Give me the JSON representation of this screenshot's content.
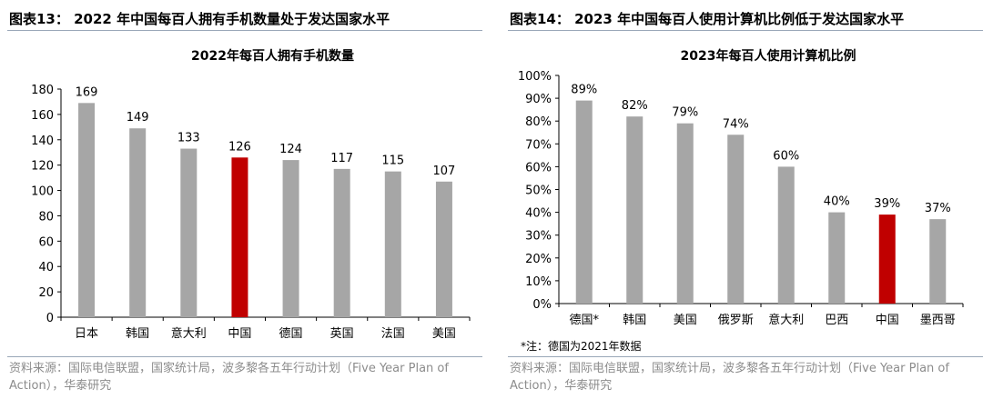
{
  "panels": [
    {
      "header": "图表13：  2022 年中国每百人拥有手机数量处于发达国家水平",
      "source": "资料来源：国际电信联盟，国家统计局，波多黎各五年行动计划（Five Year Plan of Action），华泰研究",
      "note": ""
    },
    {
      "header": "图表14：  2023 年中国每百人使用计算机比例低于发达国家水平",
      "source": "资料来源：国际电信联盟，国家统计局，波多黎各五年行动计划（Five Year Plan of Action），华泰研究",
      "note": "*注：德国为2021年数据"
    }
  ],
  "colors": {
    "bar": "#a6a6a6",
    "highlight": "#c00000",
    "axis": "#000000"
  },
  "chart_data": [
    {
      "type": "bar",
      "title": "2022年每百人拥有手机数量",
      "categories": [
        "日本",
        "韩国",
        "意大利",
        "中国",
        "德国",
        "英国",
        "法国",
        "美国"
      ],
      "values": [
        169,
        149,
        133,
        126,
        124,
        117,
        115,
        107
      ],
      "data_labels": [
        "169",
        "149",
        "133",
        "126",
        "124",
        "117",
        "115",
        "107"
      ],
      "highlight_category": "中国",
      "ylim": [
        0,
        180
      ],
      "yticks": [
        0,
        20,
        40,
        60,
        80,
        100,
        120,
        140,
        160,
        180
      ],
      "ytick_labels": [
        "0",
        "20",
        "40",
        "60",
        "80",
        "100",
        "120",
        "140",
        "160",
        "180"
      ],
      "xlabel": "",
      "ylabel": "",
      "grid": false,
      "legend": "none"
    },
    {
      "type": "bar",
      "title": "2023年每百人使用计算机比例",
      "categories": [
        "德国*",
        "韩国",
        "美国",
        "俄罗斯",
        "意大利",
        "巴西",
        "中国",
        "墨西哥"
      ],
      "values": [
        89,
        82,
        79,
        74,
        60,
        40,
        39,
        37
      ],
      "data_labels": [
        "89%",
        "82%",
        "79%",
        "74%",
        "60%",
        "40%",
        "39%",
        "37%"
      ],
      "highlight_category": "中国",
      "ylim": [
        0,
        100
      ],
      "yticks": [
        0,
        10,
        20,
        30,
        40,
        50,
        60,
        70,
        80,
        90,
        100
      ],
      "ytick_labels": [
        "0%",
        "10%",
        "20%",
        "30%",
        "40%",
        "50%",
        "60%",
        "70%",
        "80%",
        "90%",
        "100%"
      ],
      "xlabel": "",
      "ylabel": "",
      "grid": false,
      "legend": "none"
    }
  ]
}
